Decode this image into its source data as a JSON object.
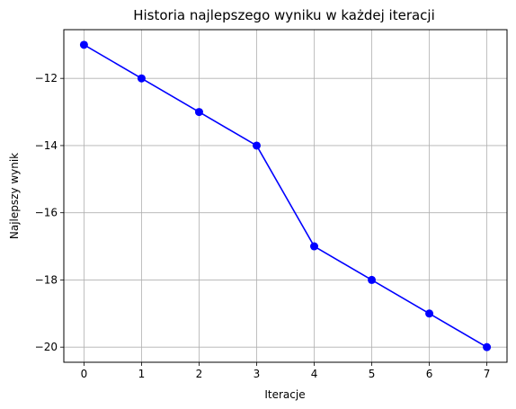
{
  "chart_data": {
    "type": "line",
    "title": "Historia najlepszego wyniku w każdej iteracji",
    "xlabel": "Iteracje",
    "ylabel": "Najlepszy wynik",
    "x": [
      0,
      1,
      2,
      3,
      4,
      5,
      6,
      7
    ],
    "series": [
      {
        "values": [
          -11,
          -12,
          -13,
          -14,
          -17,
          -18,
          -19,
          -20
        ],
        "color": "#0000ff",
        "marker": "circle"
      }
    ],
    "xlim": [
      -0.35,
      7.35
    ],
    "ylim": [
      -20.45,
      -10.55
    ],
    "xticks": [
      0,
      1,
      2,
      3,
      4,
      5,
      6,
      7
    ],
    "yticks": [
      -12,
      -14,
      -16,
      -18,
      -20
    ],
    "xtick_labels": [
      "0",
      "1",
      "2",
      "3",
      "4",
      "5",
      "6",
      "7"
    ],
    "ytick_labels": [
      "−12",
      "−14",
      "−16",
      "−18",
      "−20"
    ],
    "grid": true,
    "grid_color": "#b0b0b0"
  }
}
